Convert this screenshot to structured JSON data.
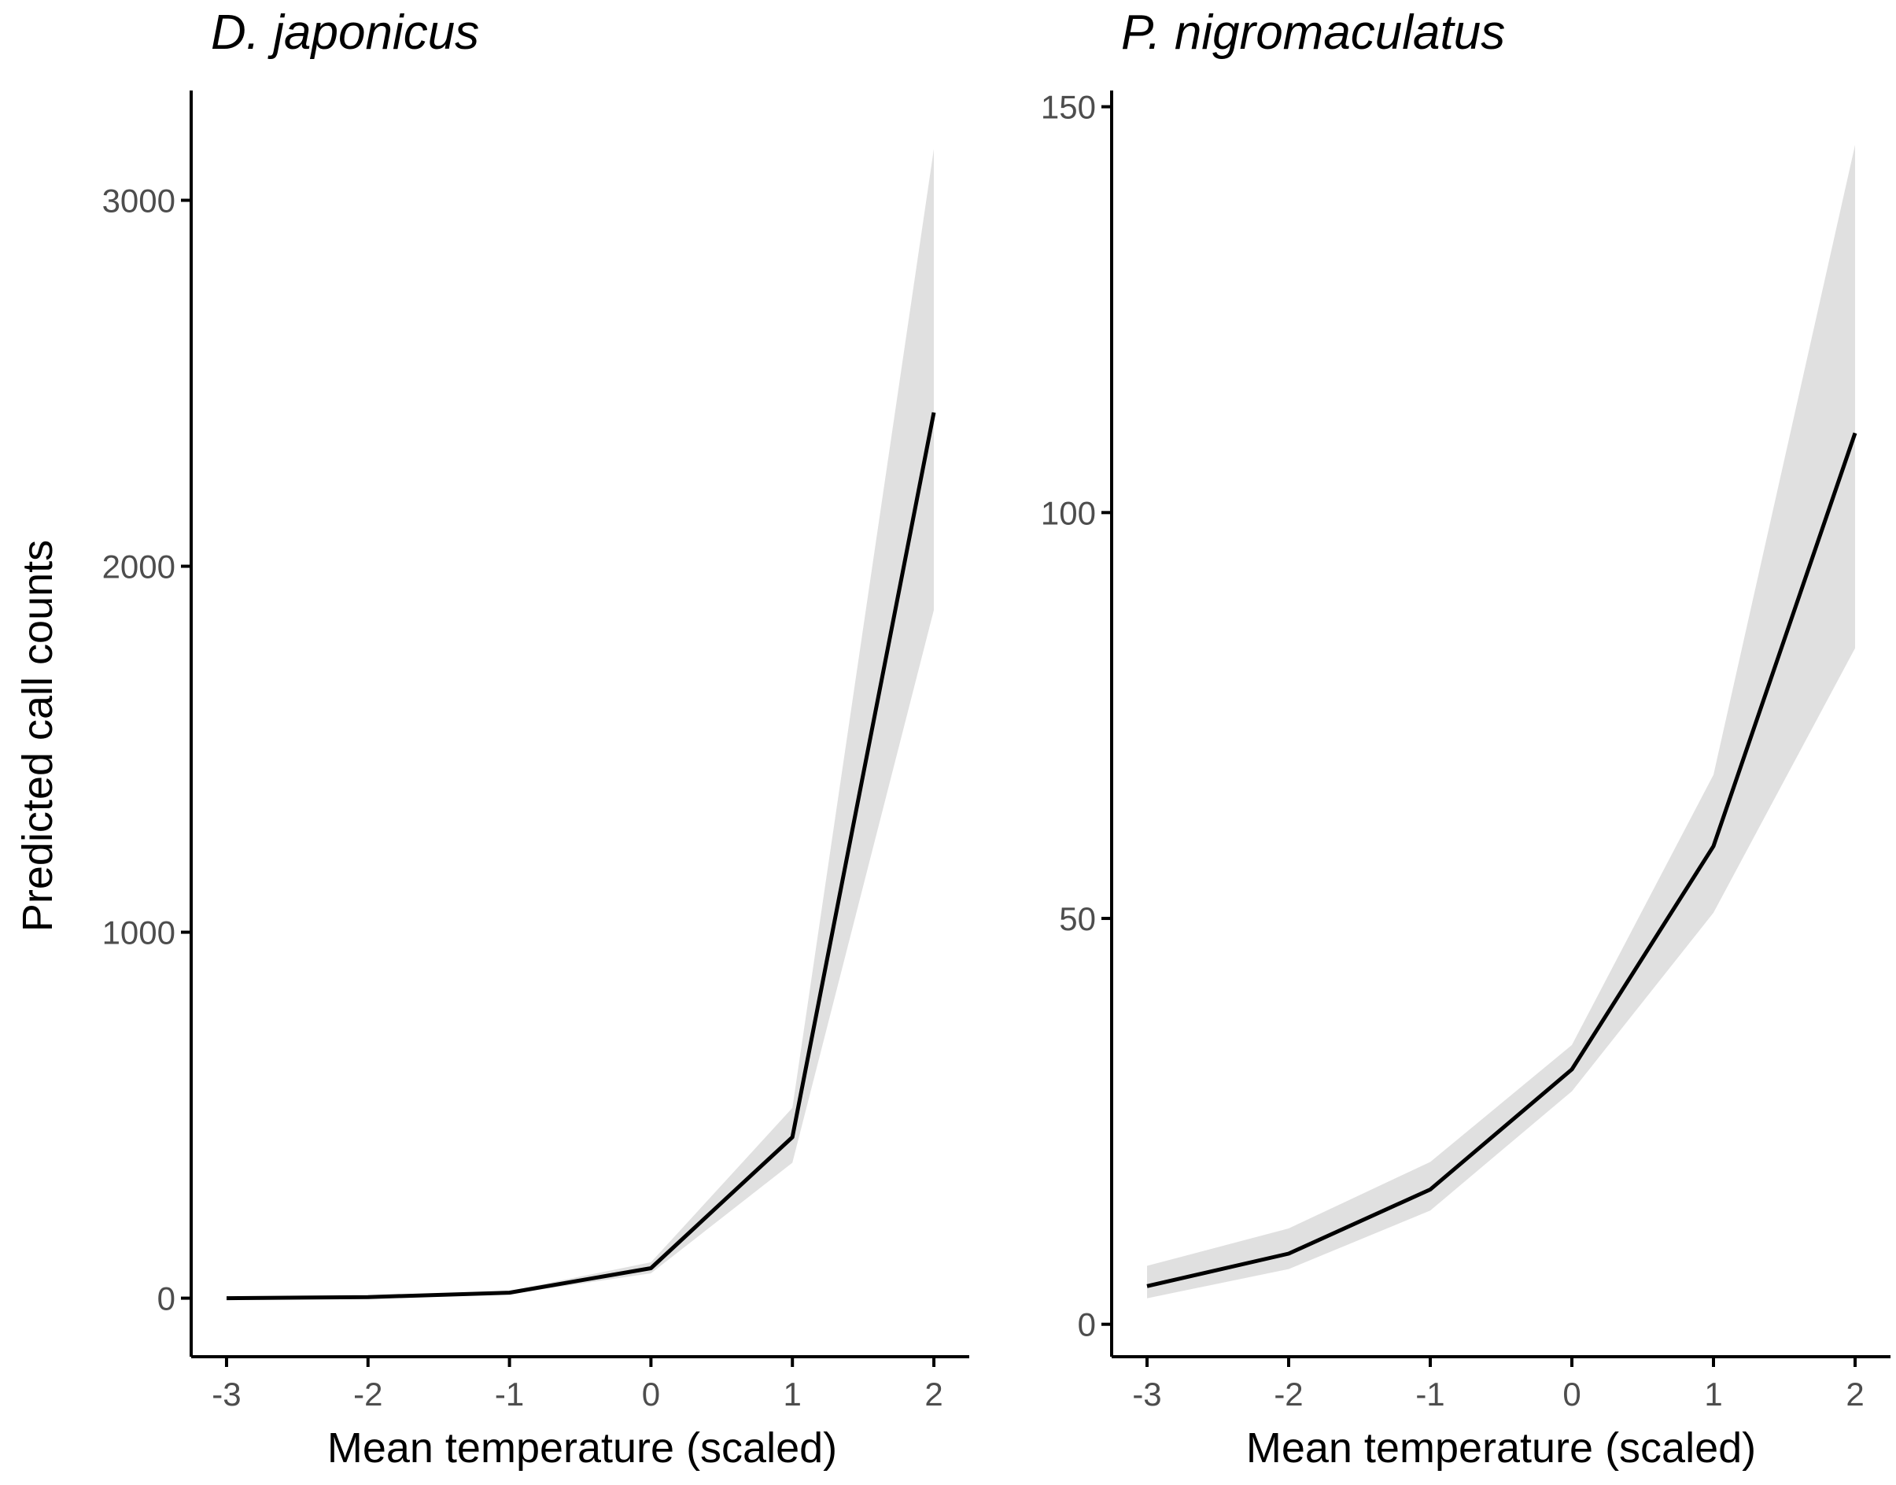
{
  "chart_data": [
    {
      "type": "line",
      "title": "D. japonicus",
      "xlabel": "Mean temperature (scaled)",
      "ylabel": "Predicted call counts",
      "x": [
        -3,
        -2,
        -1,
        0,
        1,
        2
      ],
      "xticks": [
        -3,
        -2,
        -1,
        0,
        1,
        2
      ],
      "xtick_labels": [
        "-3",
        "-2",
        "-1",
        "0",
        "1",
        "2"
      ],
      "yticks": [
        0,
        1000,
        2000,
        3000
      ],
      "ytick_labels": [
        "0",
        "1000",
        "2000",
        "3000"
      ],
      "xlim": [
        -3.25,
        2.25
      ],
      "ylim": [
        -160,
        3300
      ],
      "grid": false,
      "series": [
        {
          "name": "Predicted call counts",
          "values": [
            0,
            3,
            15,
            82,
            440,
            2420
          ],
          "lower": [
            0,
            2,
            11,
            68,
            370,
            1880
          ],
          "upper": [
            1,
            5,
            20,
            98,
            520,
            3140
          ]
        }
      ]
    },
    {
      "type": "line",
      "title": "P. nigromaculatus",
      "xlabel": "Mean temperature (scaled)",
      "ylabel": "",
      "x": [
        -3,
        -2,
        -1,
        0,
        1,
        2
      ],
      "xticks": [
        -3,
        -2,
        -1,
        0,
        1,
        2
      ],
      "xtick_labels": [
        "-3",
        "-2",
        "-1",
        "0",
        "1",
        "2"
      ],
      "yticks": [
        0,
        50,
        100,
        150
      ],
      "ytick_labels": [
        "0",
        "50",
        "100",
        "150"
      ],
      "xlim": [
        -3.25,
        2.25
      ],
      "ylim": [
        -4,
        152
      ],
      "grid": false,
      "series": [
        {
          "name": "Predicted call counts",
          "values": [
            4.7,
            8.7,
            16.6,
            31.4,
            58.9,
            109.8
          ],
          "lower": [
            3.2,
            6.8,
            14.0,
            28.7,
            50.7,
            83.3
          ],
          "upper": [
            7.2,
            11.8,
            20.0,
            34.4,
            67.7,
            145.3
          ]
        }
      ]
    }
  ]
}
